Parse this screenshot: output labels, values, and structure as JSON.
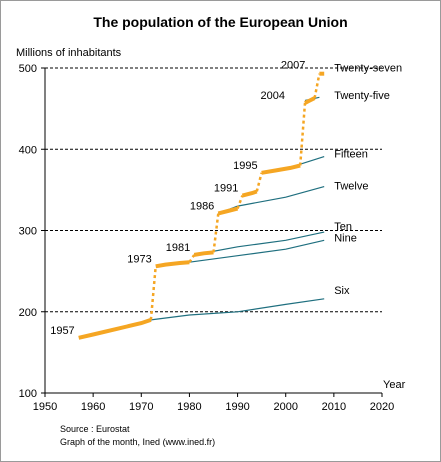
{
  "chart_data": {
    "type": "line",
    "title": "The population of the European Union",
    "ylabel": "Millions of inhabitants",
    "xlabel": "Year",
    "xlim": [
      1950,
      2020
    ],
    "ylim": [
      100,
      500
    ],
    "x_ticks": [
      1950,
      1960,
      1970,
      1980,
      1990,
      2000,
      2010,
      2020
    ],
    "y_ticks": [
      100,
      200,
      300,
      400,
      500
    ],
    "grid": "dashed horizontal lines at 200, 300, 400, 500",
    "eu_series_color": "#f5a623",
    "member_series_color": "#1f6f7f",
    "eu_population": {
      "name": "European Union",
      "segments": [
        {
          "x": [
            1957,
            1960,
            1965,
            1970,
            1972
          ],
          "y": [
            168,
            172,
            179,
            186,
            190
          ]
        },
        {
          "x": [
            1973,
            1975,
            1978,
            1980
          ],
          "y": [
            256,
            258,
            260,
            261
          ]
        },
        {
          "x": [
            1981,
            1983,
            1985
          ],
          "y": [
            270,
            272,
            273
          ]
        },
        {
          "x": [
            1986,
            1988,
            1990
          ],
          "y": [
            321,
            324,
            327
          ]
        },
        {
          "x": [
            1991,
            1993,
            1994
          ],
          "y": [
            343,
            346,
            348
          ]
        },
        {
          "x": [
            1995,
            1998,
            2001,
            2003
          ],
          "y": [
            371,
            374,
            377,
            380
          ]
        },
        {
          "x": [
            2004,
            2005,
            2006
          ],
          "y": [
            457,
            460,
            463
          ]
        },
        {
          "x": [
            2007,
            2008
          ],
          "y": [
            493,
            493
          ]
        }
      ],
      "jumps": [
        {
          "x": [
            1972,
            1973
          ],
          "y": [
            190,
            256
          ]
        },
        {
          "x": [
            1980,
            1981
          ],
          "y": [
            261,
            270
          ]
        },
        {
          "x": [
            1985,
            1986
          ],
          "y": [
            273,
            321
          ]
        },
        {
          "x": [
            1990,
            1991
          ],
          "y": [
            327,
            343
          ]
        },
        {
          "x": [
            1994,
            1995
          ],
          "y": [
            348,
            371
          ]
        },
        {
          "x": [
            2003,
            2004
          ],
          "y": [
            380,
            457
          ]
        },
        {
          "x": [
            2006,
            2007
          ],
          "y": [
            463,
            493
          ]
        }
      ]
    },
    "series": [
      {
        "name": "Six",
        "x": [
          1972,
          1980,
          1990,
          2000,
          2008
        ],
        "y": [
          190,
          196,
          200,
          209,
          216
        ]
      },
      {
        "name": "Nine",
        "x": [
          1980,
          1990,
          2000,
          2008
        ],
        "y": [
          261,
          269,
          277,
          288
        ]
      },
      {
        "name": "Ten",
        "x": [
          1981,
          1990,
          2000,
          2008
        ],
        "y": [
          270,
          280,
          288,
          298
        ]
      },
      {
        "name": "Twelve",
        "x": [
          1986,
          1990,
          2000,
          2008
        ],
        "y": [
          321,
          330,
          341,
          354
        ]
      },
      {
        "name": "Fifteen",
        "x": [
          1995,
          2000,
          2008
        ],
        "y": [
          372,
          376,
          391
        ]
      },
      {
        "name": "Twenty-five",
        "x": [
          2004,
          2007
        ],
        "y": [
          460,
          464
        ]
      }
    ],
    "annotations": [
      {
        "text": "1957",
        "x": 1957,
        "y": 168
      },
      {
        "text": "1973",
        "x": 1973,
        "y": 256
      },
      {
        "text": "1981",
        "x": 1981,
        "y": 270
      },
      {
        "text": "1986",
        "x": 1986,
        "y": 321
      },
      {
        "text": "1991",
        "x": 1991,
        "y": 343
      },
      {
        "text": "1995",
        "x": 1995,
        "y": 371
      },
      {
        "text": "2004",
        "x": 2004,
        "y": 457
      },
      {
        "text": "2007",
        "x": 2007,
        "y": 493
      }
    ],
    "series_labels": [
      {
        "text": "Twenty-seven",
        "x": 2008,
        "y": 493
      },
      {
        "text": "Twenty-five",
        "x": 2008,
        "y": 463
      },
      {
        "text": "Fifteen",
        "x": 2008,
        "y": 391
      },
      {
        "text": "Twelve",
        "x": 2008,
        "y": 354
      },
      {
        "text": "Ten",
        "x": 2008,
        "y": 298
      },
      {
        "text": "Nine",
        "x": 2008,
        "y": 288
      },
      {
        "text": "Six",
        "x": 2008,
        "y": 216
      }
    ]
  },
  "footer": {
    "source": "Source : Eurostat",
    "credit": "Graph of the month, Ined (www.ined.fr)"
  }
}
